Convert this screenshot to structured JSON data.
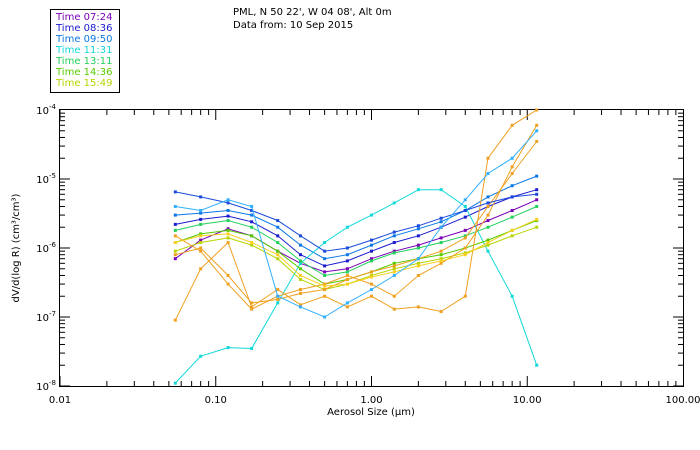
{
  "header": {
    "line1": "PML, N 50 22', W 04 08', Alt 0m",
    "line2": "Data from: 10 Sep 2015"
  },
  "legend": [
    {
      "label": "Time 07:24",
      "color": "#7b00b8"
    },
    {
      "label": "Time 08:36",
      "color": "#1b1bd0"
    },
    {
      "label": "Time 09:50",
      "color": "#0a78e6"
    },
    {
      "label": "Time 11:31",
      "color": "#12d8d8"
    },
    {
      "label": "Time 13:11",
      "color": "#22d05a"
    },
    {
      "label": "Time 14:36",
      "color": "#55cc00"
    },
    {
      "label": "Time 15:49",
      "color": "#b8d400"
    }
  ],
  "chart_data": {
    "type": "line",
    "title": "",
    "xlabel": "Aerosol Size (μm)",
    "ylabel": "dV/d(log R) (cm³/cm³)",
    "x_scale": "log",
    "y_scale": "log",
    "xlim": [
      0.01,
      100
    ],
    "ylim": [
      1e-08,
      0.0001
    ],
    "x_ticks": [
      {
        "value": 0.01,
        "label": "0.01"
      },
      {
        "value": 0.1,
        "label": "0.10"
      },
      {
        "value": 1,
        "label": "1.00"
      },
      {
        "value": 10,
        "label": "10.00"
      },
      {
        "value": 100,
        "label": "100.00"
      }
    ],
    "y_ticks": [
      {
        "value": 1e-08,
        "mantissa": "10",
        "exp": "-8"
      },
      {
        "value": 1e-07,
        "mantissa": "10",
        "exp": "-7"
      },
      {
        "value": 1e-06,
        "mantissa": "10",
        "exp": "-6"
      },
      {
        "value": 1e-05,
        "mantissa": "10",
        "exp": "-5"
      },
      {
        "value": 0.0001,
        "mantissa": "10",
        "exp": "-4"
      }
    ],
    "x": [
      0.055,
      0.08,
      0.12,
      0.17,
      0.25,
      0.35,
      0.5,
      0.7,
      1.0,
      1.4,
      2.0,
      2.8,
      4.0,
      5.6,
      8.0,
      11.5
    ],
    "series": [
      {
        "name": "Time 07:24",
        "color": "#7b00b8",
        "values": [
          7e-07,
          1.3e-06,
          1.9e-06,
          1.5e-06,
          9e-07,
          6e-07,
          4.5e-07,
          5e-07,
          7e-07,
          9e-07,
          1.1e-06,
          1.4e-06,
          1.8e-06,
          2.5e-06,
          3.5e-06,
          5e-06
        ]
      },
      {
        "name": "Time 08:36",
        "color": "#1b1bd0",
        "values": [
          2.2e-06,
          2.6e-06,
          2.9e-06,
          2.4e-06,
          1.5e-06,
          8e-07,
          5.5e-07,
          6.5e-07,
          9e-07,
          1.2e-06,
          1.5e-06,
          2e-06,
          2.8e-06,
          4e-06,
          5.5e-06,
          7e-06
        ]
      },
      {
        "name": "Time 09:50",
        "color": "#0a78e6",
        "values": [
          3e-06,
          3.2e-06,
          3.5e-06,
          3e-06,
          2e-06,
          1.1e-06,
          7e-07,
          8e-07,
          1.1e-06,
          1.5e-06,
          1.9e-06,
          2.4e-06,
          3.5e-06,
          5.5e-06,
          8e-06,
          1.1e-05
        ]
      },
      {
        "name": "Time 11:31",
        "color": "#12d8d8",
        "values": [
          1.1e-08,
          2.7e-08,
          3.6e-08,
          3.5e-08,
          1.6e-07,
          6e-07,
          1.2e-06,
          2e-06,
          3e-06,
          4.5e-06,
          7e-06,
          7e-06,
          4e-06,
          9e-07,
          2e-07,
          2e-08
        ]
      },
      {
        "name": "Time 13:11",
        "color": "#22d05a",
        "values": [
          1.8e-06,
          2.2e-06,
          2.5e-06,
          2e-06,
          1.2e-06,
          6.5e-07,
          4e-07,
          4.5e-07,
          6.5e-07,
          8.5e-07,
          1e-06,
          1.2e-06,
          1.5e-06,
          2e-06,
          2.8e-06,
          4e-06
        ]
      },
      {
        "name": "Time 14:36",
        "color": "#55cc00",
        "values": [
          1.2e-06,
          1.6e-06,
          1.8e-06,
          1.5e-06,
          9e-07,
          5e-07,
          3e-07,
          3.5e-07,
          4.5e-07,
          6e-07,
          7e-07,
          8e-07,
          1e-06,
          1.3e-06,
          1.8e-06,
          2.5e-06
        ]
      },
      {
        "name": "Time 15:49",
        "color": "#b8d400",
        "values": [
          9e-07,
          1.2e-06,
          1.4e-06,
          1.1e-06,
          7e-07,
          3.5e-07,
          2.5e-07,
          3e-07,
          4e-07,
          5e-07,
          6e-07,
          7e-07,
          8.5e-07,
          1.1e-06,
          1.5e-06,
          2e-06
        ]
      },
      {
        "name": "",
        "color": "#f0a020",
        "values": [
          9e-08,
          5e-07,
          1.2e-06,
          1.4e-07,
          2.5e-07,
          1.5e-07,
          2e-07,
          1.4e-07,
          2e-07,
          1.3e-07,
          1.4e-07,
          1.2e-07,
          2e-07,
          2e-05,
          6e-05,
          0.0001
        ]
      },
      {
        "name": "",
        "color": "#f0a020",
        "values": [
          1.5e-06,
          9e-07,
          3e-07,
          1.3e-07,
          2e-07,
          2.5e-07,
          3e-07,
          4e-07,
          3e-07,
          2e-07,
          4e-07,
          6e-07,
          1e-06,
          3e-06,
          1.5e-05,
          6e-05
        ]
      },
      {
        "name": "",
        "color": "#f0a020",
        "values": [
          8e-07,
          1e-06,
          4e-07,
          1.6e-07,
          1.8e-07,
          2.2e-07,
          2.5e-07,
          3.5e-07,
          4.5e-07,
          5.5e-07,
          7e-07,
          9e-07,
          1.4e-06,
          4e-06,
          1.2e-05,
          3.5e-05
        ]
      },
      {
        "name": "",
        "color": "#f8d020",
        "values": [
          1.2e-06,
          1.5e-06,
          1.6e-06,
          1.2e-06,
          8e-07,
          4e-07,
          2.8e-07,
          3e-07,
          3.8e-07,
          4.5e-07,
          5.5e-07,
          6.5e-07,
          8e-07,
          1.2e-06,
          1.8e-06,
          2.6e-06
        ]
      },
      {
        "name": "",
        "color": "#1a4adc",
        "values": [
          6.5e-06,
          5.5e-06,
          4.5e-06,
          3.5e-06,
          2.5e-06,
          1.5e-06,
          9e-07,
          1e-06,
          1.3e-06,
          1.7e-06,
          2.1e-06,
          2.7e-06,
          3.5e-06,
          4.5e-06,
          5.5e-06,
          6e-06
        ]
      },
      {
        "name": "",
        "color": "#30b0ff",
        "values": [
          4e-06,
          3.5e-06,
          5e-06,
          4e-06,
          2e-07,
          1.4e-07,
          1e-07,
          1.6e-07,
          2.5e-07,
          4e-07,
          7e-07,
          2e-06,
          5e-06,
          1.2e-05,
          2e-05,
          5e-05
        ]
      }
    ]
  }
}
